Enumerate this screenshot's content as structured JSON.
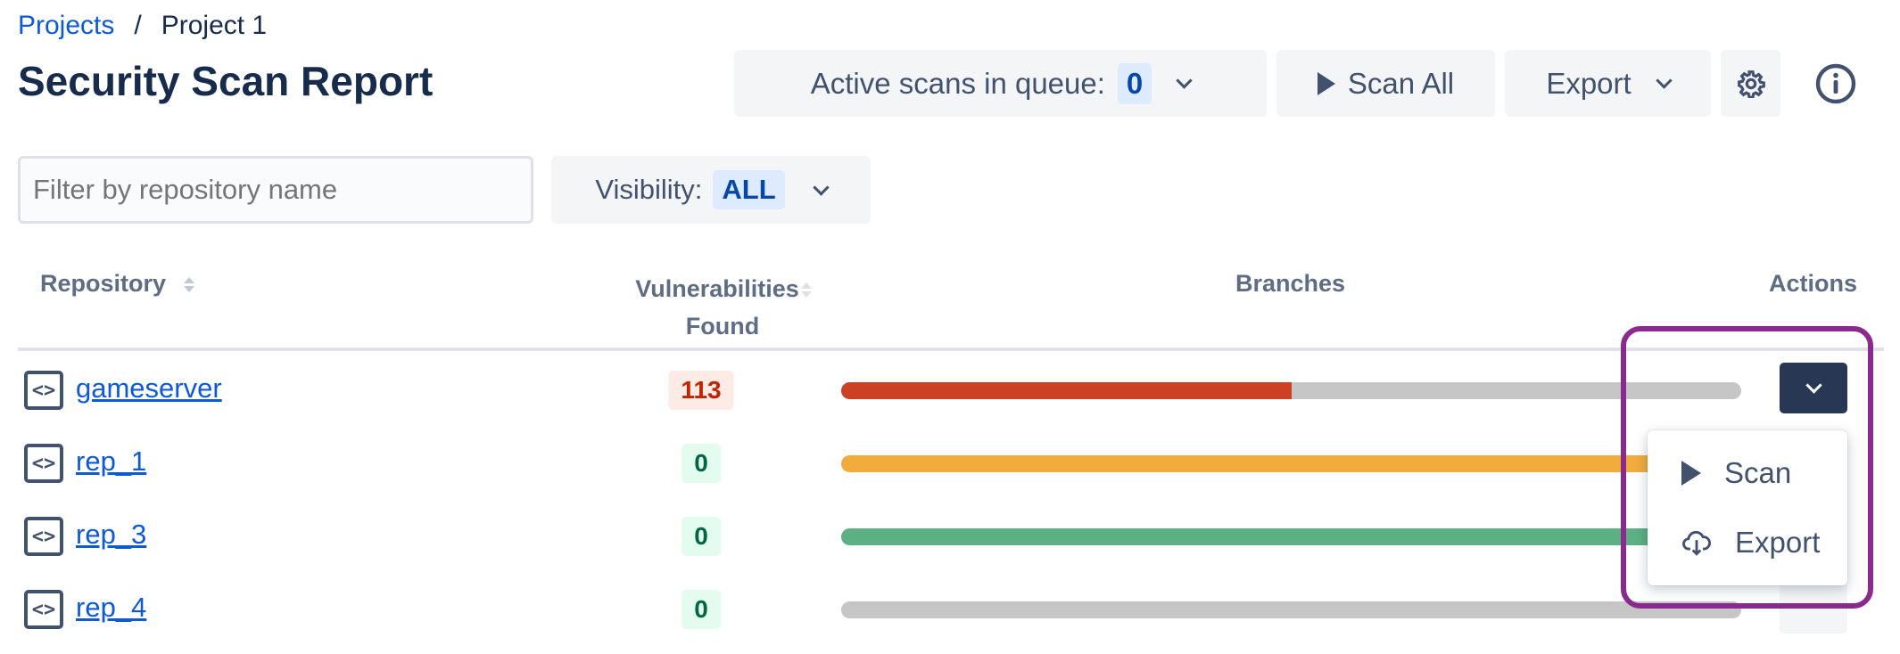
{
  "breadcrumb": {
    "root": "Projects",
    "separator": "/",
    "current": "Project 1"
  },
  "title": "Security Scan Report",
  "toolbar": {
    "active_scans_label": "Active scans in queue:",
    "active_scans_count": "0",
    "scan_all_label": "Scan All",
    "export_label": "Export",
    "settings_icon": "gear-icon",
    "info_icon": "info-icon"
  },
  "filter": {
    "placeholder": "Filter by repository name",
    "value": ""
  },
  "visibility": {
    "label": "Visibility:",
    "value": "ALL"
  },
  "table": {
    "headers": {
      "repository": "Repository",
      "vulns_line1": "Vulnerabilities",
      "vulns_line2": "Found",
      "branches": "Branches",
      "actions": "Actions"
    },
    "rows": [
      {
        "name": "gameserver",
        "vulns": "113",
        "severity": "high",
        "branch_fill": 0.5,
        "bar_color": "#cc4125"
      },
      {
        "name": "rep_1",
        "vulns": "0",
        "severity": "none",
        "branch_fill": 1,
        "bar_color": "#f2ac3c"
      },
      {
        "name": "rep_3",
        "vulns": "0",
        "severity": "none",
        "branch_fill": 1,
        "bar_color": "#5db083"
      },
      {
        "name": "rep_4",
        "vulns": "0",
        "severity": "none",
        "branch_fill": 0,
        "bar_color": "#c6c6c6"
      }
    ]
  },
  "actions_menu": {
    "items": [
      {
        "label": "Scan",
        "icon": "play-icon"
      },
      {
        "label": "Export",
        "icon": "cloud-download-icon"
      }
    ]
  },
  "colors": {
    "link": "#0c5ad6",
    "high_badge_bg": "#ffebe6",
    "high_badge_text": "#bf2600",
    "ok_badge_bg": "#e3fcef",
    "ok_badge_text": "#006644",
    "action_button": "#283754",
    "annotation": "#8b2a8e"
  }
}
